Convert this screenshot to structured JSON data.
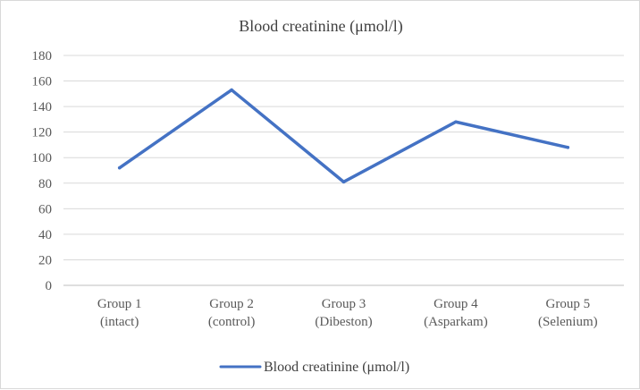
{
  "chart_data": {
    "type": "line",
    "title": "Blood creatinine  (μmol/l)",
    "categories": [
      [
        "Group 1",
        "(intact)"
      ],
      [
        "Group 2",
        "(control)"
      ],
      [
        "Group 3",
        "(Dibeston)"
      ],
      [
        "Group 4",
        "(Asparkam)"
      ],
      [
        "Group 5",
        "(Selenium)"
      ]
    ],
    "series": [
      {
        "name": "Blood creatinine (μmol/l)",
        "values": [
          92,
          153,
          81,
          128,
          108
        ],
        "color": "#4472c4"
      }
    ],
    "ylim": [
      0,
      180
    ],
    "yticks": [
      "0",
      "20",
      "40",
      "60",
      "80",
      "100",
      "120",
      "140",
      "160",
      "180"
    ],
    "grid": true,
    "legend_position": "bottom"
  }
}
